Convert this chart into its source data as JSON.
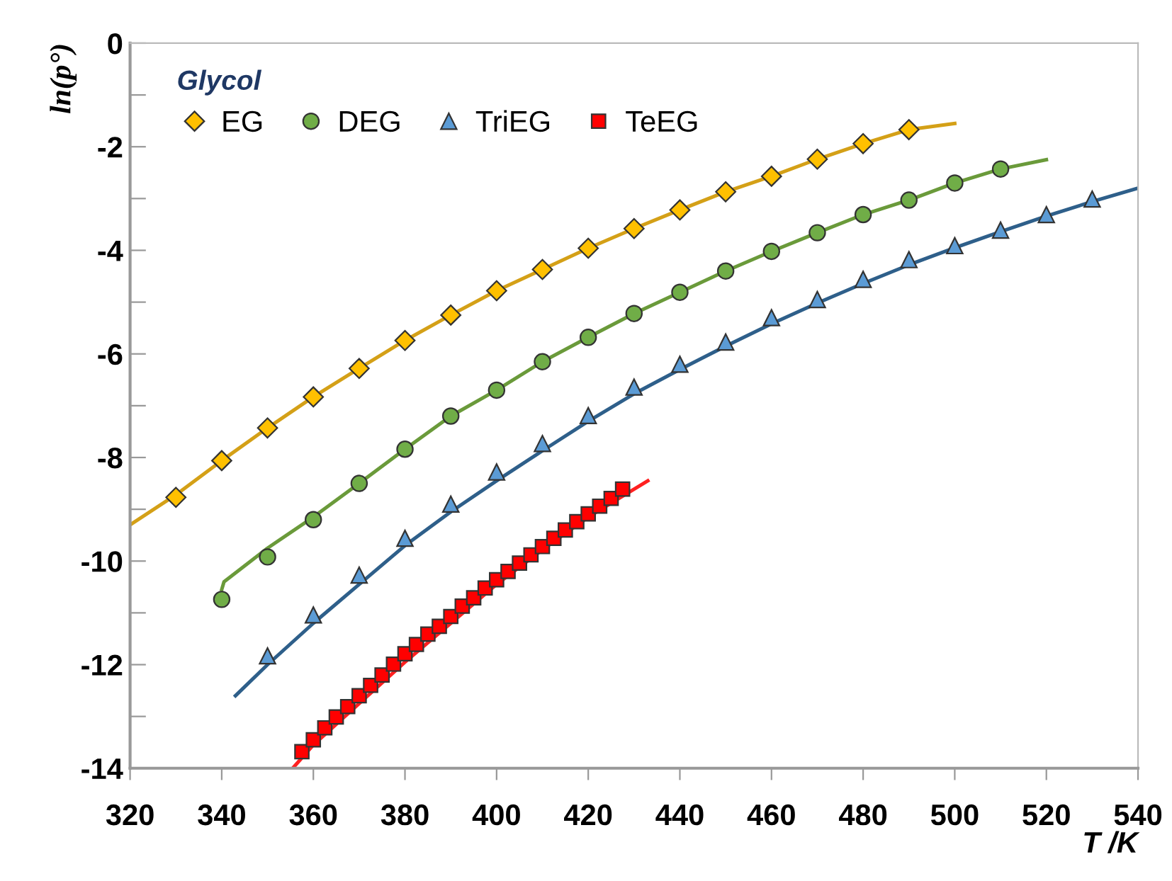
{
  "chart_data": {
    "type": "scatter",
    "xlabel": "T /K",
    "ylabel": "ln(p°)",
    "legend_title": "Glycol",
    "legend": "top left",
    "grid": false,
    "xlim": [
      320,
      540
    ],
    "xticks": [
      320,
      340,
      360,
      380,
      400,
      420,
      440,
      460,
      480,
      500,
      520,
      540
    ],
    "ylim": [
      -14,
      0
    ],
    "yticks": [
      -14,
      {
        "value": -13,
        "label": null
      },
      -12,
      {
        "value": -11,
        "label": null
      },
      -10,
      {
        "value": -9,
        "label": null
      },
      -8,
      {
        "value": -7,
        "label": null
      },
      -6,
      {
        "value": -5,
        "label": null
      },
      -4,
      {
        "value": -3,
        "label": null
      },
      -2,
      {
        "value": -1,
        "label": null
      },
      0
    ],
    "series": [
      {
        "type": "line",
        "color": "#d4a017",
        "marker": "none",
        "x": [
          320,
          330,
          340,
          350,
          360,
          370,
          380,
          390,
          400,
          410,
          420,
          430,
          440,
          450,
          460,
          470,
          480,
          490,
          500
        ],
        "values": [
          -9.3,
          -8.72,
          -8.06,
          -7.43,
          -6.83,
          -6.28,
          -5.74,
          -5.25,
          -4.78,
          -4.37,
          -3.96,
          -3.58,
          -3.22,
          -2.87,
          -2.57,
          -2.24,
          -1.94,
          -1.67,
          -1.55
        ]
      },
      {
        "type": "line",
        "color": "#6a9a3a",
        "marker": "none",
        "x": [
          340,
          340.5,
          350,
          360,
          370,
          380,
          390,
          400,
          410,
          420,
          430,
          440,
          450,
          460,
          470,
          480,
          490,
          500,
          510,
          520
        ],
        "values": [
          -10.55,
          -10.4,
          -9.75,
          -9.15,
          -8.5,
          -7.84,
          -7.2,
          -6.7,
          -6.15,
          -5.68,
          -5.22,
          -4.81,
          -4.4,
          -4.02,
          -3.66,
          -3.31,
          -3.03,
          -2.7,
          -2.43,
          -2.25
        ]
      },
      {
        "type": "line",
        "color": "#2e5f8a",
        "marker": "none",
        "x": [
          343,
          350,
          360,
          370,
          380,
          390,
          400,
          410,
          420,
          430,
          440,
          450,
          460,
          470,
          480,
          490,
          500,
          510,
          520,
          530,
          540
        ],
        "values": [
          -12.6,
          -12.0,
          -11.2,
          -10.45,
          -9.7,
          -9.05,
          -8.45,
          -7.87,
          -7.3,
          -6.77,
          -6.3,
          -5.85,
          -5.42,
          -5.02,
          -4.64,
          -4.28,
          -3.95,
          -3.64,
          -3.34,
          -3.06,
          -2.8
        ]
      },
      {
        "type": "line",
        "color": "#ff2020",
        "marker": "none",
        "x": [
          355.5,
          360,
          370,
          380,
          390,
          400,
          410,
          420,
          433
        ],
        "values": [
          -14.0,
          -13.55,
          -12.75,
          -11.95,
          -11.2,
          -10.45,
          -9.78,
          -9.15,
          -8.45
        ]
      },
      {
        "name": "EG",
        "color": "#ffc000",
        "marker": "diamond",
        "x": [
          330,
          340,
          350,
          360,
          370,
          380,
          390,
          400,
          410,
          420,
          430,
          440,
          450,
          460,
          470,
          480,
          490
        ],
        "values": [
          -8.77,
          -8.06,
          -7.43,
          -6.83,
          -6.28,
          -5.74,
          -5.25,
          -4.78,
          -4.37,
          -3.96,
          -3.58,
          -3.22,
          -2.87,
          -2.57,
          -2.24,
          -1.94,
          -1.67
        ]
      },
      {
        "name": "DEG",
        "color": "#70ad47",
        "marker": "circle",
        "x": [
          340,
          350,
          360,
          370,
          380,
          390,
          400,
          410,
          420,
          430,
          440,
          450,
          460,
          470,
          480,
          490,
          500,
          510
        ],
        "values": [
          -10.74,
          -9.92,
          -9.2,
          -8.5,
          -7.84,
          -7.2,
          -6.7,
          -6.15,
          -5.68,
          -5.22,
          -4.81,
          -4.4,
          -4.02,
          -3.66,
          -3.31,
          -3.03,
          -2.7,
          -2.43
        ]
      },
      {
        "name": "TriEG",
        "color": "#5b9bd5",
        "marker": "triangle",
        "x": [
          350,
          360,
          370,
          380,
          390,
          400,
          410,
          420,
          430,
          440,
          450,
          460,
          470,
          480,
          490,
          500,
          510,
          520,
          530
        ],
        "values": [
          -11.83,
          -11.04,
          -10.27,
          -9.56,
          -8.9,
          -8.28,
          -7.73,
          -7.19,
          -6.64,
          -6.2,
          -5.77,
          -5.3,
          -4.95,
          -4.56,
          -4.18,
          -3.91,
          -3.61,
          -3.31,
          -3.01
        ]
      },
      {
        "name": "TeEG",
        "color": "#ff0000",
        "marker": "square",
        "x": [
          357.5,
          360,
          362.5,
          365,
          367.5,
          370,
          372.5,
          375,
          377.5,
          380,
          382.5,
          385,
          387.5,
          390,
          392.5,
          395,
          397.5,
          400,
          402.5,
          405,
          407.5,
          410,
          412.5,
          415,
          417.5,
          420,
          422.5,
          425,
          427.5
        ],
        "values": [
          -13.68,
          -13.45,
          -13.22,
          -13.01,
          -12.81,
          -12.6,
          -12.4,
          -12.2,
          -11.99,
          -11.79,
          -11.61,
          -11.41,
          -11.26,
          -11.07,
          -10.87,
          -10.71,
          -10.52,
          -10.36,
          -10.2,
          -10.04,
          -9.88,
          -9.72,
          -9.56,
          -9.4,
          -9.24,
          -9.09,
          -8.94,
          -8.79,
          -8.61
        ]
      }
    ]
  }
}
